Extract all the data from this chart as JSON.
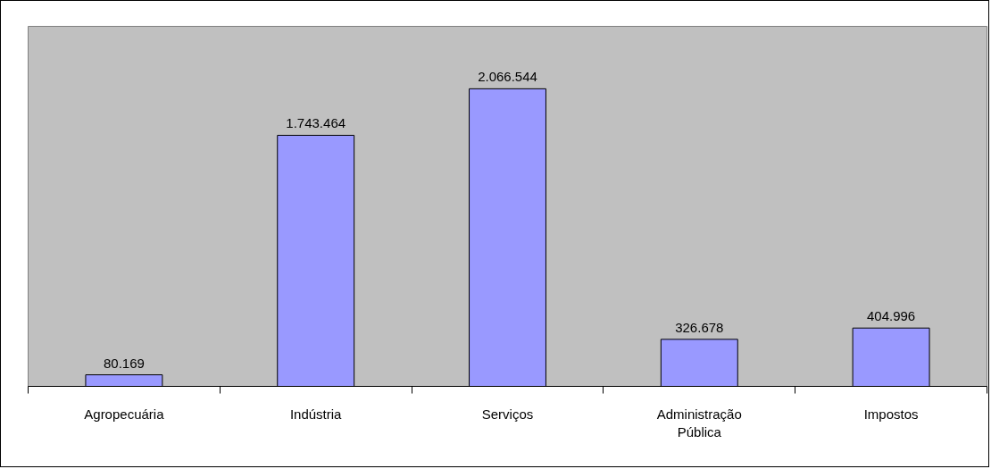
{
  "chart_data": {
    "type": "bar",
    "categories": [
      "Agropecuária",
      "Indústria",
      "Serviços",
      "Administração Pública",
      "Impostos"
    ],
    "values": [
      80169,
      1743464,
      2066544,
      326678,
      404996
    ],
    "value_labels": [
      "80.169",
      "1.743.464",
      "2.066.544",
      "326.678",
      "404.996"
    ],
    "color": "#9999ff",
    "ylim": [
      0,
      2500000
    ],
    "grid": false
  }
}
